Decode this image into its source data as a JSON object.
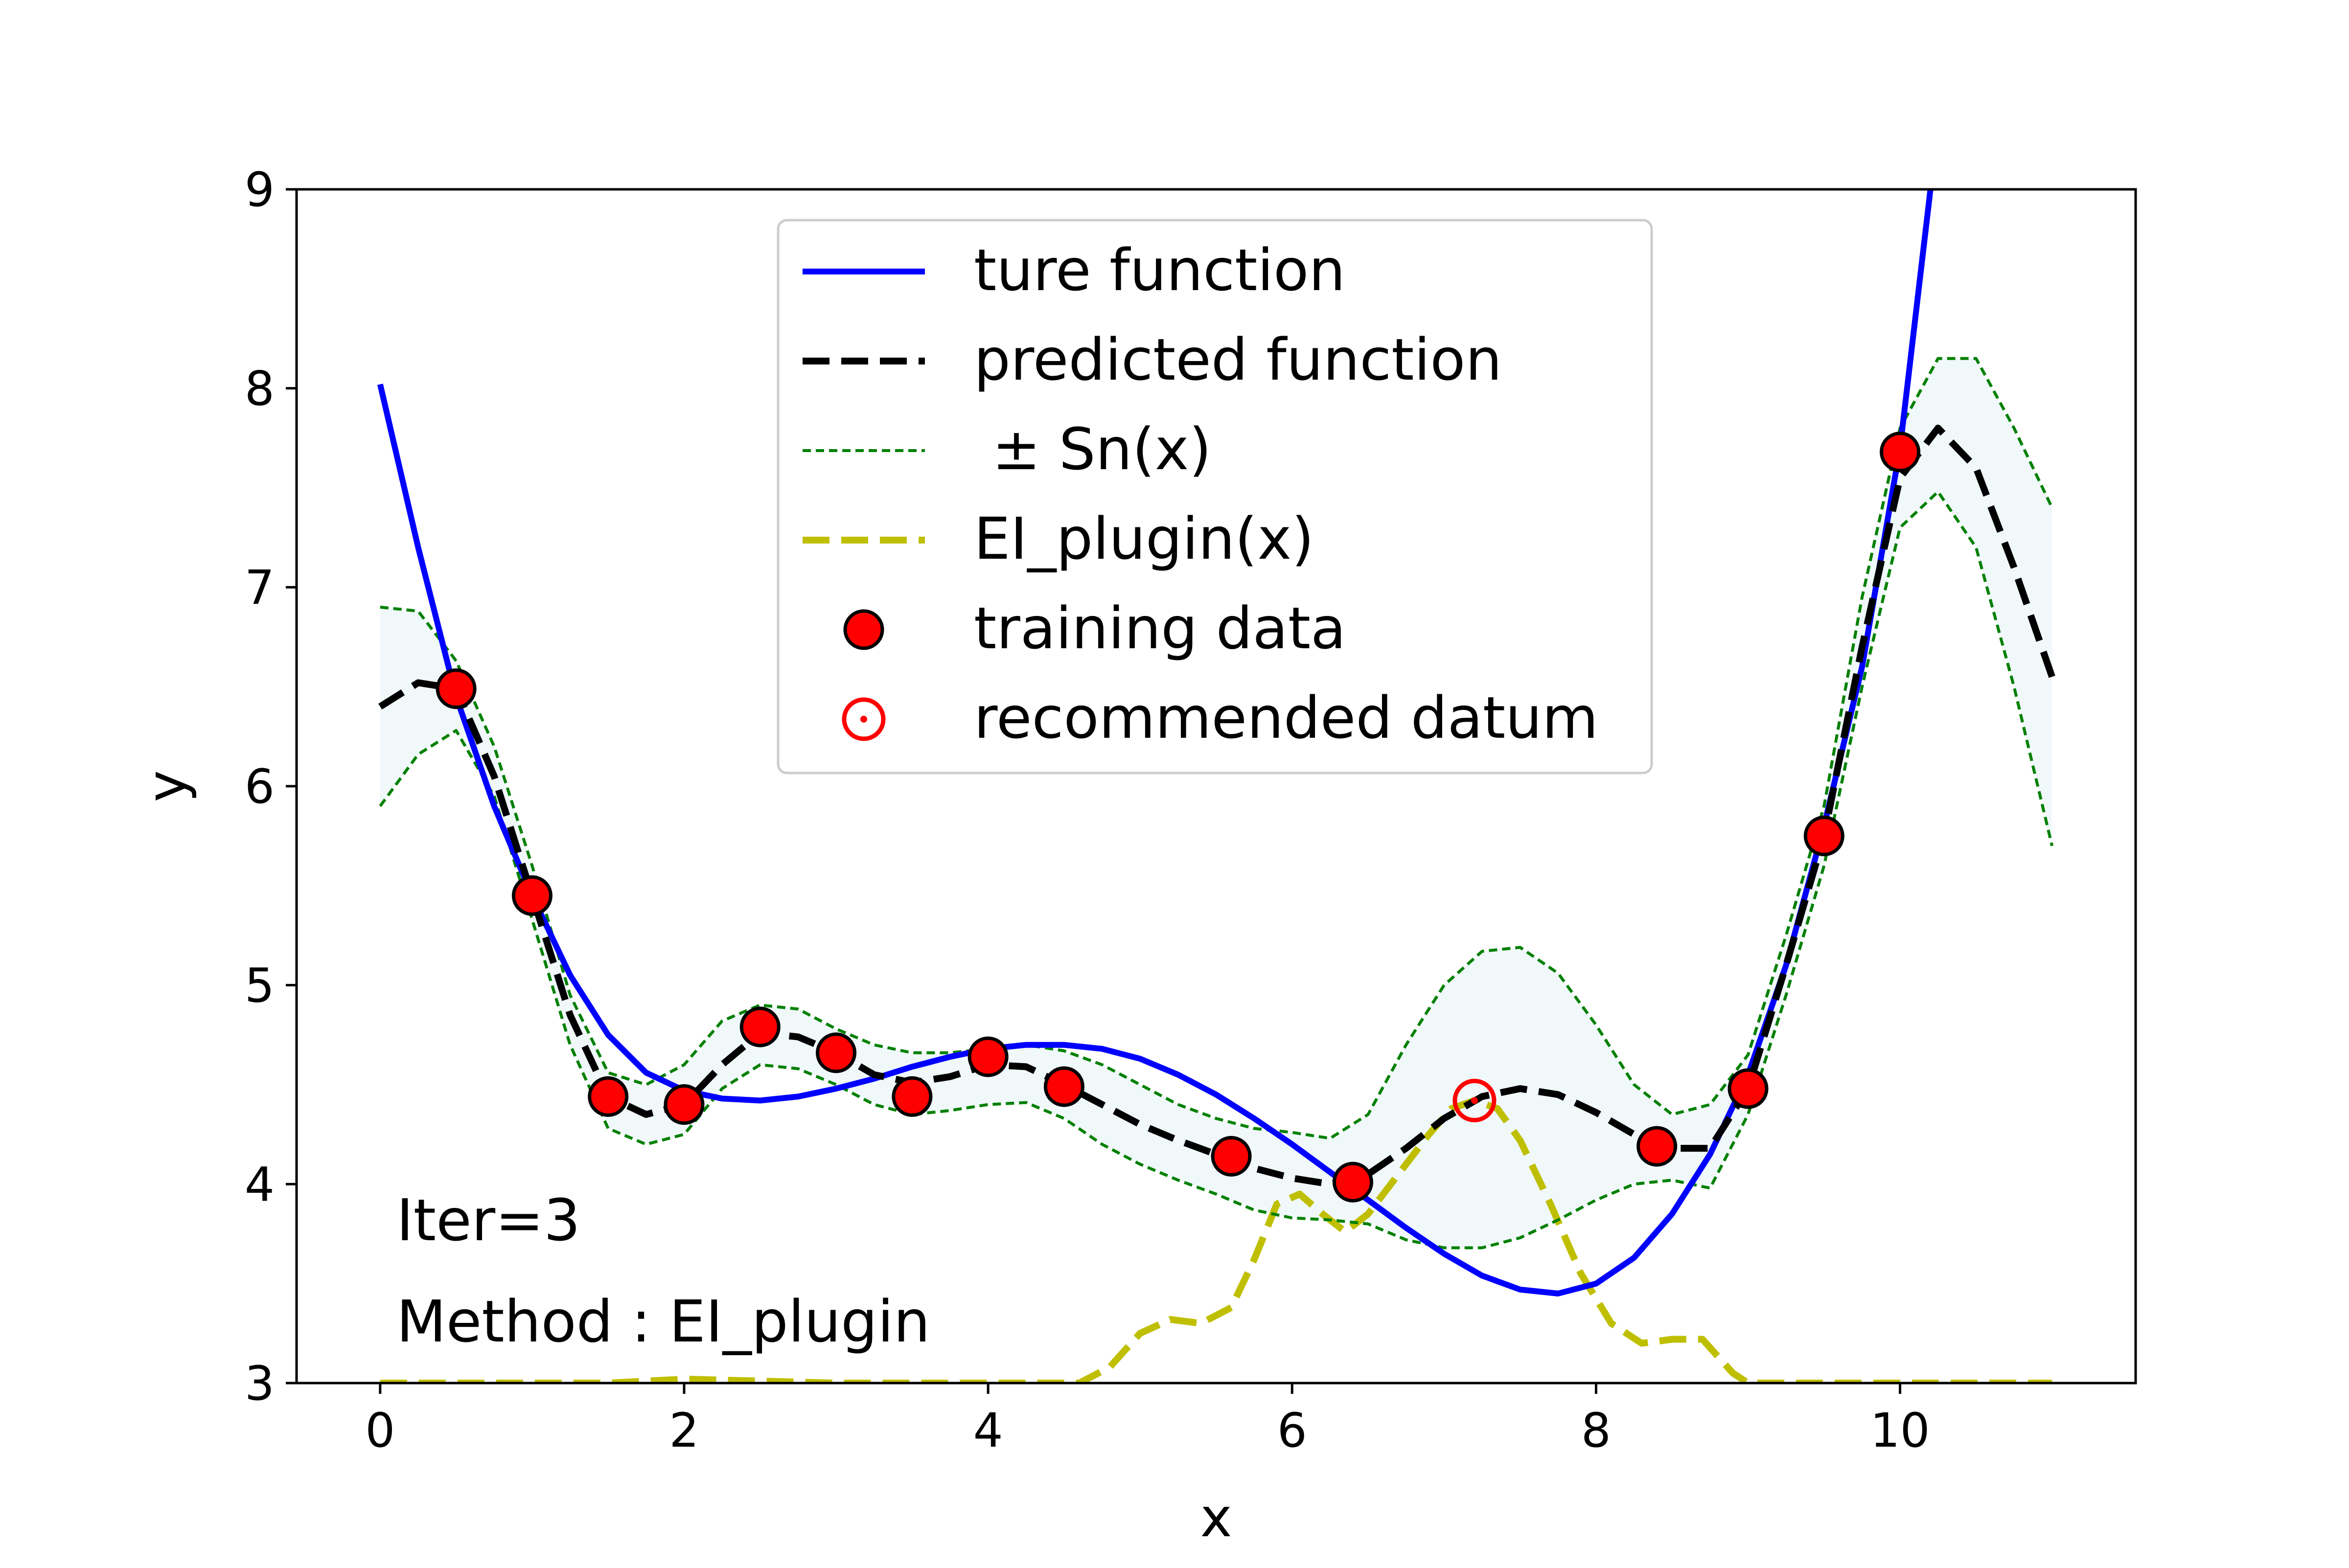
{
  "chart_data": {
    "type": "line",
    "xlabel": "x",
    "ylabel": "y",
    "xlim": [
      -0.55,
      11.55
    ],
    "ylim": [
      3,
      9
    ],
    "x_ticks": [
      0,
      2,
      4,
      6,
      8,
      10
    ],
    "y_ticks": [
      3,
      4,
      5,
      6,
      7,
      8,
      9
    ],
    "legend_position": "top-center",
    "annotations": [
      "Iter=3",
      "Method : EI_plugin"
    ],
    "legend": [
      {
        "label": "ture function",
        "style": "blue-solid",
        "color": "#0000ff"
      },
      {
        "label": "predicted function",
        "style": "black-dashed",
        "color": "#000000"
      },
      {
        "label": " ± Sn(x)",
        "style": "green-dotted",
        "color": "#008000"
      },
      {
        "label": "EI_plugin(x)",
        "style": "olive-dashed",
        "color": "#bfbf00"
      },
      {
        "label": "training data",
        "style": "red-marker",
        "color": "#ff0000"
      },
      {
        "label": "recommended datum",
        "style": "red-ring-marker",
        "color": "#ff0000"
      }
    ],
    "series": [
      {
        "name": "ture function",
        "color": "#0000ff",
        "x": [
          0,
          0.25,
          0.5,
          0.75,
          1.0,
          1.25,
          1.5,
          1.75,
          2.0,
          2.25,
          2.5,
          2.75,
          3.0,
          3.25,
          3.5,
          3.75,
          4.0,
          4.25,
          4.5,
          4.75,
          5.0,
          5.25,
          5.5,
          5.75,
          6.0,
          6.25,
          6.5,
          6.75,
          7.0,
          7.25,
          7.5,
          7.75,
          8.0,
          8.25,
          8.5,
          8.75,
          9.0,
          9.25,
          9.5,
          9.75,
          10.0,
          10.2
        ],
        "y": [
          8.02,
          7.2,
          6.45,
          5.9,
          5.45,
          5.05,
          4.75,
          4.56,
          4.47,
          4.43,
          4.42,
          4.44,
          4.48,
          4.53,
          4.59,
          4.64,
          4.68,
          4.7,
          4.7,
          4.68,
          4.63,
          4.55,
          4.45,
          4.33,
          4.2,
          4.06,
          3.92,
          3.78,
          3.65,
          3.54,
          3.47,
          3.45,
          3.5,
          3.63,
          3.85,
          4.15,
          4.55,
          5.1,
          5.8,
          6.6,
          7.7,
          9.0
        ]
      },
      {
        "name": "predicted function",
        "color": "#000000",
        "x": [
          0,
          0.25,
          0.5,
          0.75,
          1.0,
          1.25,
          1.5,
          1.75,
          2.0,
          2.25,
          2.5,
          2.75,
          3.0,
          3.25,
          3.5,
          3.75,
          4.0,
          4.25,
          4.5,
          4.75,
          5.0,
          5.25,
          5.5,
          5.75,
          6.0,
          6.25,
          6.5,
          6.75,
          7.0,
          7.25,
          7.5,
          7.75,
          8.0,
          8.25,
          8.5,
          8.75,
          9.0,
          9.25,
          9.5,
          9.75,
          10.0,
          10.25,
          10.5,
          10.75,
          11.0
        ],
        "y": [
          6.4,
          6.52,
          6.49,
          6.05,
          5.45,
          4.85,
          4.44,
          4.35,
          4.4,
          4.6,
          4.76,
          4.74,
          4.66,
          4.55,
          4.51,
          4.54,
          4.6,
          4.59,
          4.5,
          4.4,
          4.3,
          4.22,
          4.15,
          4.08,
          4.03,
          4.0,
          4.05,
          4.18,
          4.33,
          4.44,
          4.48,
          4.45,
          4.36,
          4.25,
          4.18,
          4.18,
          4.48,
          5.1,
          5.75,
          6.7,
          7.55,
          7.8,
          7.6,
          7.1,
          6.55
        ]
      },
      {
        "name": "upper Sn(x)",
        "color": "#008000",
        "x": [
          0,
          0.25,
          0.5,
          0.75,
          1.0,
          1.25,
          1.5,
          1.75,
          2.0,
          2.25,
          2.5,
          2.75,
          3.0,
          3.25,
          3.5,
          3.75,
          4.0,
          4.25,
          4.5,
          4.75,
          5.0,
          5.25,
          5.5,
          5.75,
          6.0,
          6.25,
          6.5,
          6.75,
          7.0,
          7.25,
          7.5,
          7.75,
          8.0,
          8.25,
          8.5,
          8.75,
          9.0,
          9.25,
          9.5,
          9.75,
          10.0,
          10.25,
          10.5,
          10.75,
          11.0
        ],
        "y": [
          6.9,
          6.88,
          6.63,
          6.2,
          5.6,
          4.95,
          4.56,
          4.5,
          4.6,
          4.82,
          4.9,
          4.88,
          4.78,
          4.7,
          4.66,
          4.66,
          4.68,
          4.7,
          4.67,
          4.6,
          4.5,
          4.4,
          4.33,
          4.28,
          4.26,
          4.23,
          4.35,
          4.7,
          5.0,
          5.17,
          5.19,
          5.06,
          4.8,
          4.5,
          4.35,
          4.4,
          4.65,
          5.25,
          5.9,
          6.95,
          7.8,
          8.15,
          8.15,
          7.8,
          7.4
        ]
      },
      {
        "name": "lower Sn(x)",
        "color": "#008000",
        "x": [
          0,
          0.25,
          0.5,
          0.75,
          1.0,
          1.25,
          1.5,
          1.75,
          2.0,
          2.25,
          2.5,
          2.75,
          3.0,
          3.25,
          3.5,
          3.75,
          4.0,
          4.25,
          4.5,
          4.75,
          5.0,
          5.25,
          5.5,
          5.75,
          6.0,
          6.25,
          6.5,
          6.75,
          7.0,
          7.25,
          7.5,
          7.75,
          8.0,
          8.25,
          8.5,
          8.75,
          9.0,
          9.25,
          9.5,
          9.75,
          10.0,
          10.25,
          10.5,
          10.75,
          11.0
        ],
        "y": [
          5.9,
          6.16,
          6.28,
          5.95,
          5.33,
          4.7,
          4.28,
          4.2,
          4.25,
          4.48,
          4.6,
          4.58,
          4.5,
          4.4,
          4.35,
          4.37,
          4.4,
          4.41,
          4.33,
          4.2,
          4.1,
          4.02,
          3.95,
          3.87,
          3.83,
          3.82,
          3.8,
          3.72,
          3.68,
          3.68,
          3.73,
          3.82,
          3.92,
          4.0,
          4.02,
          3.98,
          4.35,
          4.95,
          5.6,
          6.5,
          7.3,
          7.48,
          7.2,
          6.5,
          5.7
        ]
      },
      {
        "name": "EI_plugin(x)",
        "color": "#bfbf00",
        "x": [
          0,
          0.5,
          1.0,
          1.5,
          2.0,
          2.5,
          3.0,
          3.5,
          4.0,
          4.5,
          4.6,
          4.8,
          5.0,
          5.2,
          5.4,
          5.6,
          5.75,
          5.9,
          6.05,
          6.2,
          6.35,
          6.5,
          6.7,
          6.9,
          7.05,
          7.2,
          7.35,
          7.5,
          7.7,
          7.9,
          8.1,
          8.3,
          8.5,
          8.7,
          8.9,
          9.0,
          9.5,
          10.0,
          10.5,
          11.0
        ],
        "y": [
          3.0,
          3.0,
          3.0,
          3.0,
          3.02,
          3.01,
          3.0,
          3.0,
          3.0,
          3.0,
          3.0,
          3.08,
          3.25,
          3.32,
          3.3,
          3.38,
          3.62,
          3.9,
          3.95,
          3.85,
          3.76,
          3.85,
          4.05,
          4.25,
          4.38,
          4.42,
          4.38,
          4.22,
          3.9,
          3.55,
          3.3,
          3.2,
          3.22,
          3.22,
          3.05,
          3.0,
          3.0,
          3.0,
          3.0,
          3.0
        ]
      }
    ],
    "training_data": {
      "x": [
        0.5,
        1.0,
        1.5,
        2.0,
        2.5,
        3.0,
        3.5,
        4.0,
        4.5,
        5.6,
        6.4,
        8.4,
        9.0,
        9.5,
        10.0
      ],
      "y": [
        6.49,
        5.45,
        4.44,
        4.4,
        4.79,
        4.66,
        4.44,
        4.64,
        4.49,
        4.14,
        4.01,
        4.19,
        4.48,
        5.75,
        7.68
      ]
    },
    "recommended_datum": {
      "x": 7.2,
      "y": 4.42
    }
  }
}
